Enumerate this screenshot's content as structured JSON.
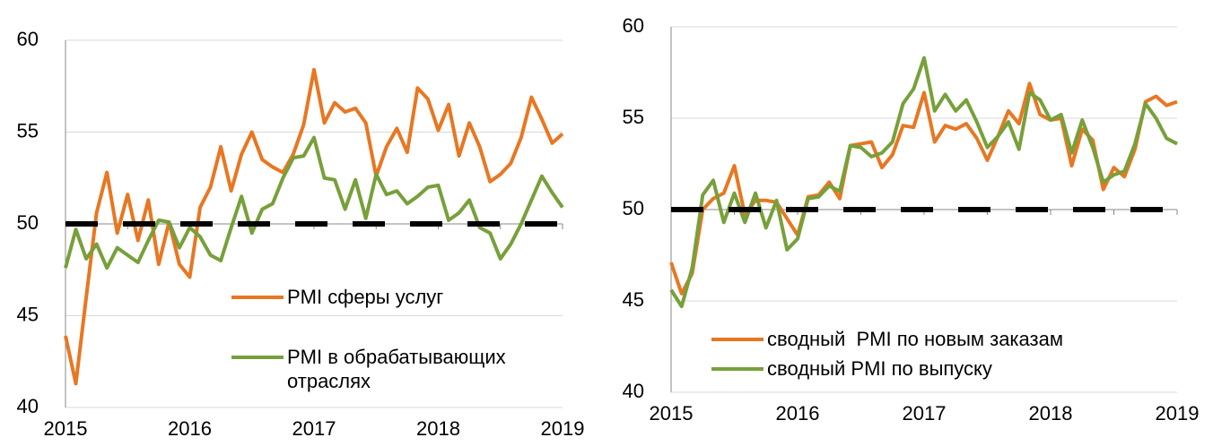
{
  "chart_data": [
    {
      "type": "line",
      "categories": [
        "2015",
        null,
        null,
        null,
        null,
        null,
        null,
        null,
        null,
        null,
        null,
        null,
        "2016",
        null,
        null,
        null,
        null,
        null,
        null,
        null,
        null,
        null,
        null,
        null,
        "2017",
        null,
        null,
        null,
        null,
        null,
        null,
        null,
        null,
        null,
        null,
        null,
        "2018",
        null,
        null,
        null,
        null,
        null,
        null,
        null,
        null,
        null,
        null,
        null,
        "2019"
      ],
      "series": [
        {
          "name": "PMI сферы услуг",
          "color": "#e87722",
          "values": [
            43.9,
            41.3,
            46,
            50.6,
            52.8,
            49.5,
            51.6,
            49.1,
            51.3,
            47.8,
            50.1,
            47.8,
            47.1,
            50.9,
            52,
            54.2,
            51.8,
            53.8,
            55,
            53.5,
            53.1,
            52.8,
            53.8,
            55.4,
            58.4,
            55.5,
            56.6,
            56.1,
            56.3,
            55.5,
            52.6,
            54.2,
            55.2,
            53.9,
            57.4,
            56.8,
            55.1,
            56.5,
            53.7,
            55.5,
            54.2,
            52.3,
            52.7,
            53.3,
            54.7,
            56.9,
            55.7,
            54.4,
            54.9
          ]
        },
        {
          "name": "PMI в обрабатывающих отраслях",
          "color": "#77a03a",
          "values": [
            47.6,
            49.7,
            48.1,
            48.9,
            47.6,
            48.7,
            48.3,
            47.9,
            49.1,
            50.2,
            50.1,
            48.7,
            49.8,
            49.3,
            48.3,
            48,
            49.8,
            51.5,
            49.5,
            50.8,
            51.1,
            52.5,
            53.6,
            53.7,
            54.7,
            52.5,
            52.4,
            50.8,
            52.4,
            50.3,
            52.7,
            51.6,
            51.8,
            51.1,
            51.5,
            52,
            52.1,
            50.2,
            50.6,
            51.3,
            49.8,
            49.5,
            48.1,
            48.9,
            50,
            51.3,
            52.6,
            51.7,
            50.9
          ]
        }
      ],
      "reference_line": 50,
      "ylim": [
        40,
        60
      ],
      "yticks": [
        40,
        45,
        50,
        55,
        60
      ],
      "grid": true
    },
    {
      "type": "line",
      "categories": [
        "2015",
        null,
        null,
        null,
        null,
        null,
        null,
        null,
        null,
        null,
        null,
        null,
        "2016",
        null,
        null,
        null,
        null,
        null,
        null,
        null,
        null,
        null,
        null,
        null,
        "2017",
        null,
        null,
        null,
        null,
        null,
        null,
        null,
        null,
        null,
        null,
        null,
        "2018",
        null,
        null,
        null,
        null,
        null,
        null,
        null,
        null,
        null,
        null,
        null,
        "2019"
      ],
      "series": [
        {
          "name": "сводный  PMI по новым заказам",
          "color": "#e87722",
          "values": [
            47.1,
            45.4,
            46.5,
            50,
            50.6,
            50.9,
            52.4,
            49.7,
            50.5,
            50.5,
            50.4,
            49.5,
            48.6,
            50.7,
            50.8,
            51.5,
            50.6,
            53.5,
            53.6,
            53.7,
            52.3,
            53,
            54.6,
            54.5,
            56.4,
            53.7,
            54.6,
            54.4,
            54.7,
            53.9,
            52.7,
            54,
            55.4,
            54.7,
            56.9,
            55.2,
            54.9,
            55,
            52.4,
            54.4,
            53.8,
            51.1,
            52.3,
            51.8,
            53.3,
            55.9,
            56.2,
            55.7,
            55.9
          ]
        },
        {
          "name": "сводный PMI по выпуску",
          "color": "#77a03a",
          "values": [
            45.6,
            44.7,
            46.8,
            50.8,
            51.6,
            49.3,
            50.9,
            49.3,
            50.9,
            49,
            50.5,
            47.8,
            48.4,
            50.6,
            50.7,
            51.3,
            51,
            53.5,
            53.4,
            52.9,
            53.1,
            53.7,
            55.8,
            56.6,
            58.3,
            55.4,
            56.3,
            55.4,
            56,
            54.8,
            53.4,
            54,
            54.8,
            53.3,
            56.4,
            56,
            54.9,
            55.2,
            53.1,
            54.9,
            53.4,
            51.5,
            51.9,
            52.1,
            53.6,
            55.8,
            55,
            53.9,
            53.6
          ]
        }
      ],
      "reference_line": 50,
      "ylim": [
        40,
        60
      ],
      "yticks": [
        40,
        45,
        50,
        55,
        60
      ],
      "grid": true
    }
  ]
}
